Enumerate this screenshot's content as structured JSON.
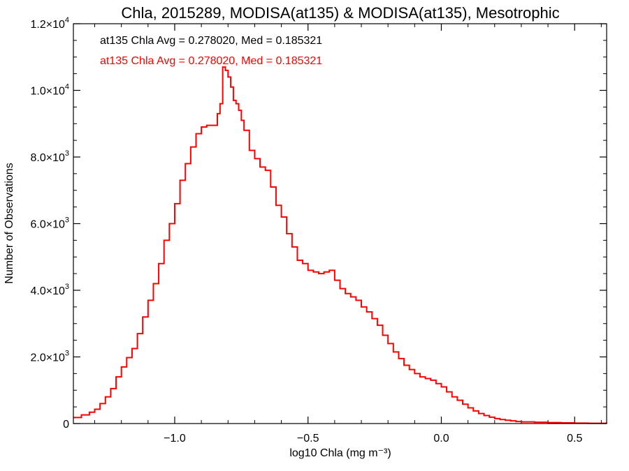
{
  "chart_data": {
    "type": "line",
    "title": "Chla, 2015289, MODISA(at135) & MODISA(at135), Mesotrophic",
    "xlabel": "log10 Chla (mg m⁻³)",
    "ylabel": "Number of Observations",
    "xlim": [
      -1.38,
      0.62
    ],
    "ylim": [
      0,
      12000
    ],
    "grid": false,
    "x_ticks": [
      -1.0,
      -0.5,
      0.0,
      0.5
    ],
    "x_tick_labels": [
      "−1.0",
      "−0.5",
      "0.0",
      "0.5"
    ],
    "y_ticks": [
      {
        "value": 0,
        "mantissa": "0",
        "exp": ""
      },
      {
        "value": 2000,
        "mantissa": "2.0×10",
        "exp": "3"
      },
      {
        "value": 4000,
        "mantissa": "4.0×10",
        "exp": "3"
      },
      {
        "value": 6000,
        "mantissa": "6.0×10",
        "exp": "3"
      },
      {
        "value": 8000,
        "mantissa": "8.0×10",
        "exp": "3"
      },
      {
        "value": 10000,
        "mantissa": "1.0×10",
        "exp": "4"
      },
      {
        "value": 12000,
        "mantissa": "1.2×10",
        "exp": "4"
      }
    ],
    "annotations": [
      {
        "text": "at135 Chla Avg = 0.278020, Med = 0.185321",
        "color": "#000000"
      },
      {
        "text": "at135 Chla Avg = 0.278020, Med = 0.185321",
        "color": "#ff0000"
      }
    ],
    "series": [
      {
        "color": "#ff0000",
        "step": true,
        "points": [
          [
            -1.38,
            180
          ],
          [
            -1.35,
            260
          ],
          [
            -1.32,
            340
          ],
          [
            -1.3,
            430
          ],
          [
            -1.28,
            600
          ],
          [
            -1.26,
            800
          ],
          [
            -1.24,
            1050
          ],
          [
            -1.22,
            1400
          ],
          [
            -1.2,
            1700
          ],
          [
            -1.18,
            1980
          ],
          [
            -1.16,
            2250
          ],
          [
            -1.14,
            2700
          ],
          [
            -1.12,
            3200
          ],
          [
            -1.1,
            3700
          ],
          [
            -1.08,
            4200
          ],
          [
            -1.06,
            4800
          ],
          [
            -1.04,
            5500
          ],
          [
            -1.02,
            6000
          ],
          [
            -1.0,
            6600
          ],
          [
            -0.98,
            7300
          ],
          [
            -0.96,
            7800
          ],
          [
            -0.94,
            8300
          ],
          [
            -0.92,
            8700
          ],
          [
            -0.9,
            8900
          ],
          [
            -0.88,
            8950
          ],
          [
            -0.86,
            8950
          ],
          [
            -0.84,
            9300
          ],
          [
            -0.83,
            9600
          ],
          [
            -0.82,
            10700
          ],
          [
            -0.81,
            10600
          ],
          [
            -0.8,
            10400
          ],
          [
            -0.79,
            10100
          ],
          [
            -0.78,
            9700
          ],
          [
            -0.77,
            9600
          ],
          [
            -0.76,
            9400
          ],
          [
            -0.75,
            9100
          ],
          [
            -0.74,
            8800
          ],
          [
            -0.72,
            8200
          ],
          [
            -0.7,
            7950
          ],
          [
            -0.68,
            7700
          ],
          [
            -0.66,
            7600
          ],
          [
            -0.64,
            7100
          ],
          [
            -0.62,
            6550
          ],
          [
            -0.6,
            6200
          ],
          [
            -0.58,
            5700
          ],
          [
            -0.56,
            5300
          ],
          [
            -0.54,
            4900
          ],
          [
            -0.52,
            4800
          ],
          [
            -0.5,
            4600
          ],
          [
            -0.48,
            4550
          ],
          [
            -0.46,
            4500
          ],
          [
            -0.44,
            4550
          ],
          [
            -0.42,
            4600
          ],
          [
            -0.4,
            4300
          ],
          [
            -0.38,
            4050
          ],
          [
            -0.36,
            3900
          ],
          [
            -0.34,
            3800
          ],
          [
            -0.32,
            3700
          ],
          [
            -0.3,
            3500
          ],
          [
            -0.28,
            3350
          ],
          [
            -0.26,
            3150
          ],
          [
            -0.24,
            2950
          ],
          [
            -0.22,
            2650
          ],
          [
            -0.2,
            2400
          ],
          [
            -0.18,
            2150
          ],
          [
            -0.16,
            1950
          ],
          [
            -0.14,
            1750
          ],
          [
            -0.12,
            1620
          ],
          [
            -0.1,
            1500
          ],
          [
            -0.08,
            1400
          ],
          [
            -0.06,
            1350
          ],
          [
            -0.04,
            1300
          ],
          [
            -0.02,
            1200
          ],
          [
            0.0,
            1100
          ],
          [
            0.02,
            950
          ],
          [
            0.04,
            800
          ],
          [
            0.06,
            700
          ],
          [
            0.08,
            580
          ],
          [
            0.1,
            470
          ],
          [
            0.12,
            380
          ],
          [
            0.14,
            300
          ],
          [
            0.16,
            240
          ],
          [
            0.18,
            190
          ],
          [
            0.2,
            150
          ],
          [
            0.22,
            120
          ],
          [
            0.24,
            100
          ],
          [
            0.26,
            80
          ],
          [
            0.28,
            60
          ],
          [
            0.3,
            50
          ],
          [
            0.35,
            40
          ],
          [
            0.4,
            30
          ],
          [
            0.45,
            20
          ],
          [
            0.5,
            12
          ],
          [
            0.55,
            8
          ],
          [
            0.62,
            5
          ]
        ]
      }
    ]
  }
}
